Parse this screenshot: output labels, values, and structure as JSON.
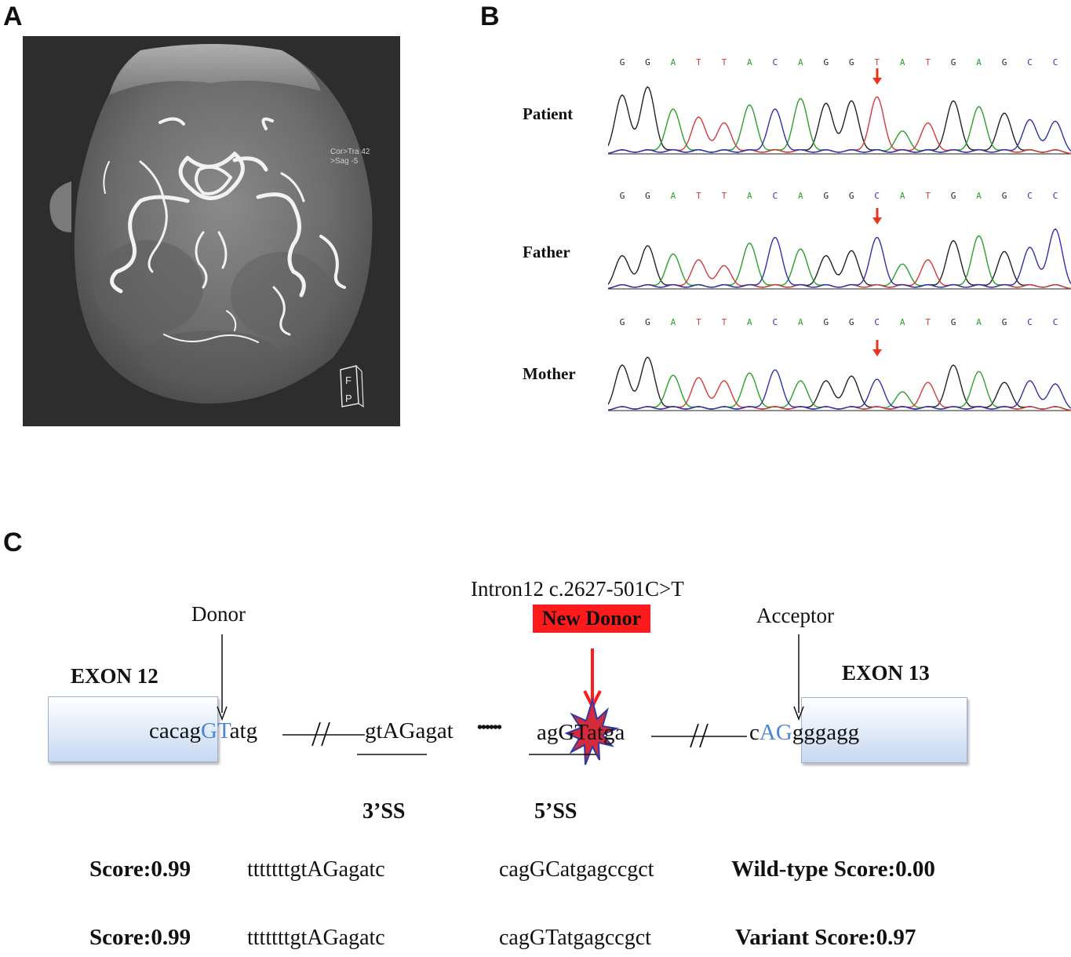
{
  "panels": {
    "a": "A",
    "b": "B",
    "c": "C"
  },
  "mra": {
    "overlay_line1": "Cor>Tra  42",
    "overlay_line2": ">Sag  -5",
    "orientation_top": "F",
    "orientation_bottom": "P"
  },
  "sequencing": {
    "bases": {
      "patient": [
        "G",
        "G",
        "A",
        "T",
        "T",
        "A",
        "C",
        "A",
        "G",
        "G",
        "T",
        "A",
        "T",
        "G",
        "A",
        "G",
        "C",
        "C"
      ],
      "father": [
        "G",
        "G",
        "A",
        "T",
        "T",
        "A",
        "C",
        "A",
        "G",
        "G",
        "C",
        "A",
        "T",
        "G",
        "A",
        "G",
        "C",
        "C"
      ],
      "mother": [
        "G",
        "G",
        "A",
        "T",
        "T",
        "A",
        "C",
        "A",
        "G",
        "G",
        "C",
        "A",
        "T",
        "G",
        "A",
        "G",
        "C",
        "C"
      ]
    },
    "labels": {
      "patient": "Patient",
      "father": "Father",
      "mother": "Mother"
    },
    "base_colors": {
      "G": "#222222",
      "A": "#2aa02a",
      "T": "#d23b3b",
      "C": "#2f2fb0"
    },
    "arrow_color": "#e8361c",
    "variant_index": 10
  },
  "diagram": {
    "variant_title": "Intron12 c.2627-501C>T",
    "new_donor": "New Donor",
    "donor": "Donor",
    "acceptor": "Acceptor",
    "exon12": "EXON 12",
    "exon13": "EXON 13",
    "seq": {
      "s1": "cacag",
      "s1_blue": "GT",
      "s1_end": "atg",
      "s2": "gtAGagat",
      "dots": "••••••",
      "s3a": "agG",
      "s3b": "T",
      "s3c": "atga",
      "s4a": "c",
      "s4_blue": "AG",
      "s4_end": "gggagg"
    },
    "ss3": "3’SS",
    "ss5": "5’SS",
    "rows": [
      {
        "score_left": "Score:0.99",
        "seq_left": "tttttttgtAGagatc",
        "seq_right": "cagGCatgagccgct",
        "score_right": "Wild-type Score:0.00"
      },
      {
        "score_left": "Score:0.99",
        "seq_left": "tttttttgtAGagatc",
        "seq_right": "cagGTatgagccgct",
        "score_right": "Variant Score:0.97"
      }
    ],
    "accent_blue": "#4a86d8",
    "accent_red": "#ff1b1b"
  }
}
